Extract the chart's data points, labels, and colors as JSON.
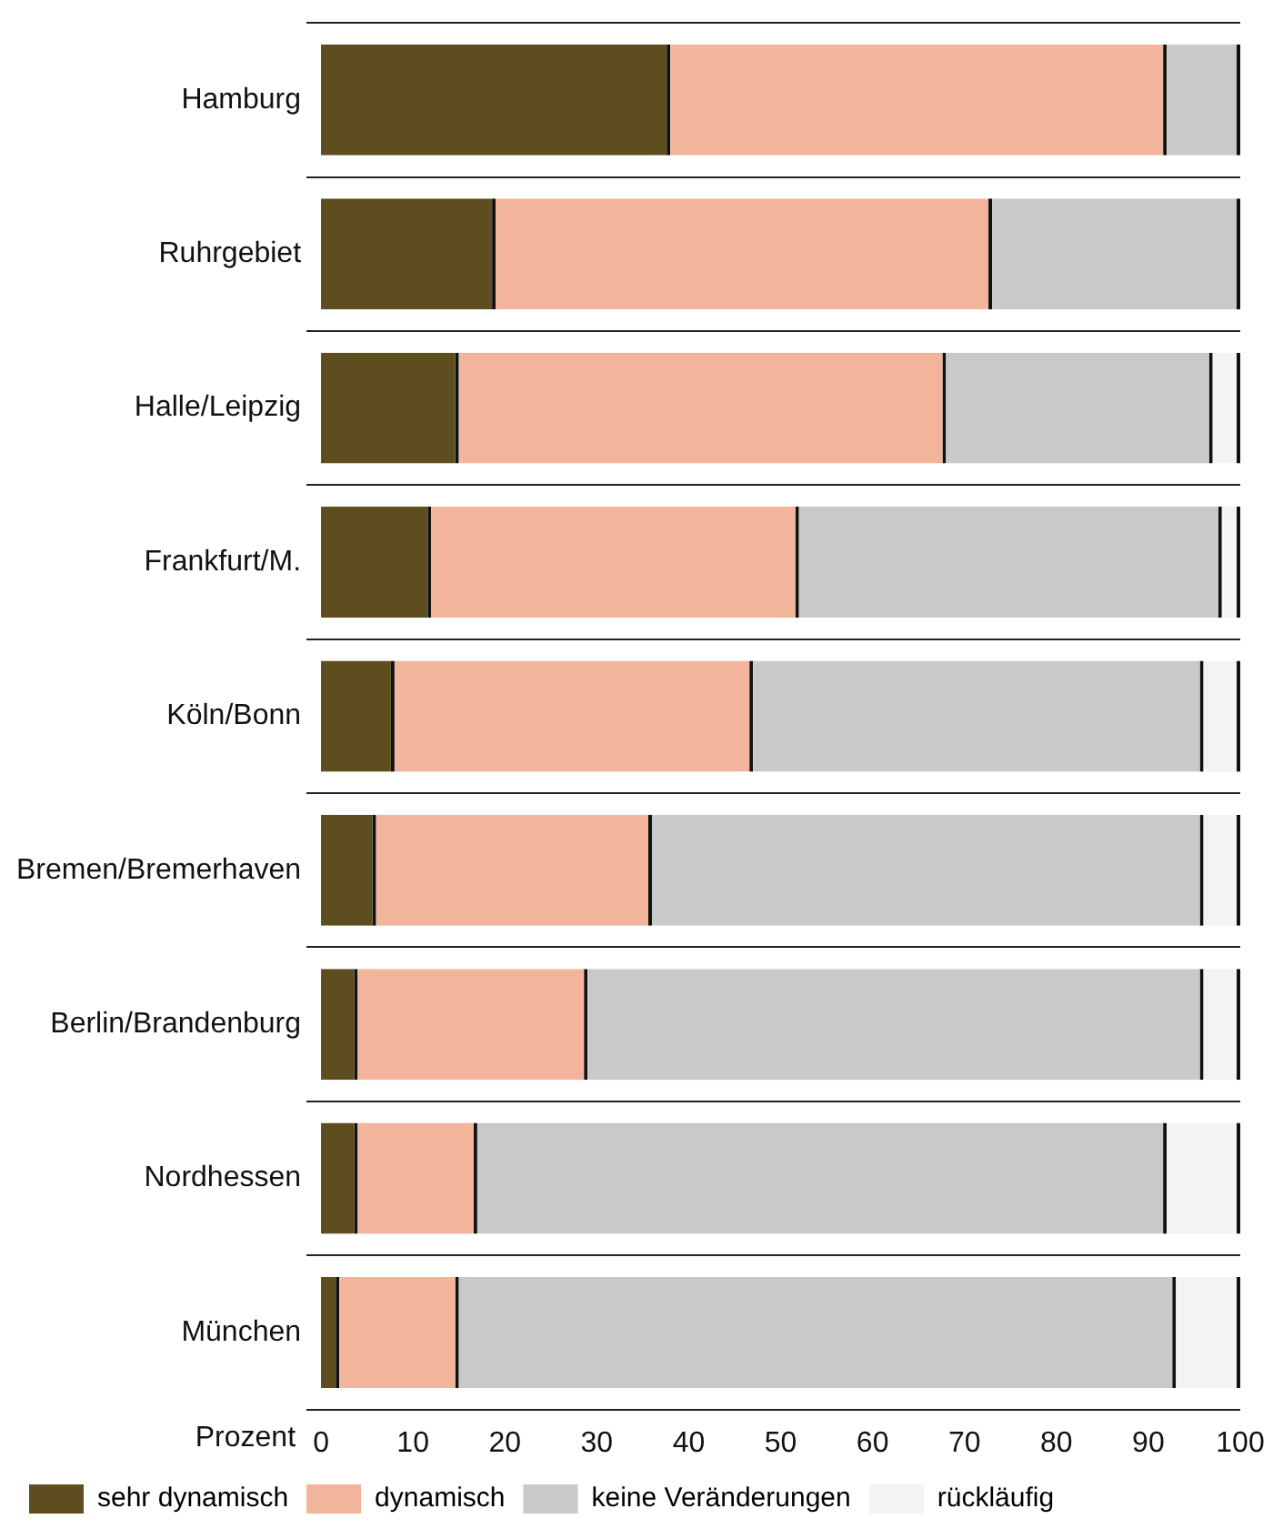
{
  "chart_data": {
    "type": "bar",
    "orientation": "horizontal",
    "stacked": true,
    "xlabel": "Prozent",
    "categories": [
      "Hamburg",
      "Ruhrgebiet",
      "Halle/Leipzig",
      "Frankfurt/M.",
      "Köln/Bonn",
      "Bremen/Bremerhaven",
      "Berlin/Brandenburg",
      "Nordhessen",
      "München"
    ],
    "series": [
      {
        "name": "sehr dynamisch",
        "color": "#5e4d1f",
        "values": [
          38,
          19,
          15,
          12,
          8,
          6,
          4,
          4,
          2
        ]
      },
      {
        "name": "dynamisch",
        "color": "#f2b49a",
        "values": [
          54,
          54,
          53,
          40,
          39,
          30,
          25,
          13,
          13
        ]
      },
      {
        "name": "keine Veränderungen",
        "color": "#c9c9c9",
        "values": [
          8,
          27,
          29,
          46,
          49,
          60,
          67,
          75,
          78
        ]
      },
      {
        "name": "rückläufig",
        "color": "#f3f3f3",
        "values": [
          0,
          0,
          3,
          2,
          4,
          4,
          4,
          8,
          7
        ]
      }
    ],
    "xlim": [
      0,
      100
    ],
    "xticks": [
      0,
      10,
      20,
      30,
      40,
      50,
      60,
      70,
      80,
      90,
      100
    ],
    "grid": "y",
    "legend": "bottom"
  }
}
